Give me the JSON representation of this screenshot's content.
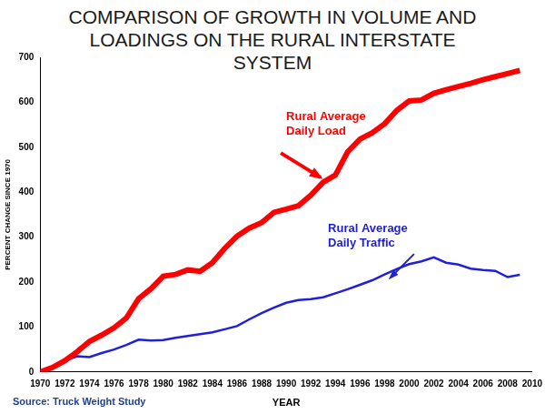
{
  "chart_data": {
    "type": "line",
    "title": "COMPARISON OF GROWTH IN VOLUME AND LOADINGS ON THE RURAL INTERSTATE SYSTEM",
    "x_label": "YEAR",
    "y_label": "PERCENT CHANGE SINCE 1970",
    "source": "Source: Truck Weight Study",
    "x": [
      1970,
      1971,
      1972,
      1973,
      1974,
      1975,
      1976,
      1977,
      1978,
      1979,
      1980,
      1981,
      1982,
      1983,
      1984,
      1985,
      1986,
      1987,
      1988,
      1989,
      1990,
      1991,
      1992,
      1993,
      1994,
      1995,
      1996,
      1997,
      1998,
      1999,
      2000,
      2001,
      2002,
      2003,
      2004,
      2005,
      2006,
      2007,
      2008,
      2009
    ],
    "series": [
      {
        "name": "Rural Average Daily Load",
        "color": "#ff0000",
        "line_style": "solid",
        "values": [
          0,
          10,
          25,
          45,
          68,
          82,
          98,
          120,
          163,
          185,
          213,
          217,
          227,
          224,
          243,
          275,
          302,
          320,
          332,
          355,
          362,
          370,
          393,
          422,
          438,
          490,
          518,
          532,
          552,
          582,
          603,
          605,
          620,
          628,
          635,
          642,
          650,
          657,
          664,
          671
        ]
      },
      {
        "name": "Rural Average Daily Traffic",
        "color": "#2020d8",
        "line_style": "solid",
        "values": [
          0,
          12,
          25,
          35,
          33,
          42,
          50,
          60,
          72,
          70,
          71,
          76,
          80,
          84,
          88,
          95,
          102,
          117,
          131,
          143,
          154,
          160,
          162,
          166,
          175,
          184,
          194,
          204,
          217,
          229,
          240,
          246,
          255,
          243,
          239,
          230,
          227,
          225,
          211,
          216
        ]
      }
    ],
    "xlim": [
      1970,
      2010
    ],
    "xticks": [
      1970,
      1972,
      1974,
      1976,
      1978,
      1980,
      1982,
      1984,
      1986,
      1988,
      1990,
      1992,
      1994,
      1996,
      1998,
      2000,
      2002,
      2004,
      2006,
      2008,
      2010
    ],
    "ylim": [
      0,
      700
    ],
    "yticks": [
      0,
      100,
      200,
      300,
      400,
      500,
      600,
      700
    ],
    "grid": false
  }
}
